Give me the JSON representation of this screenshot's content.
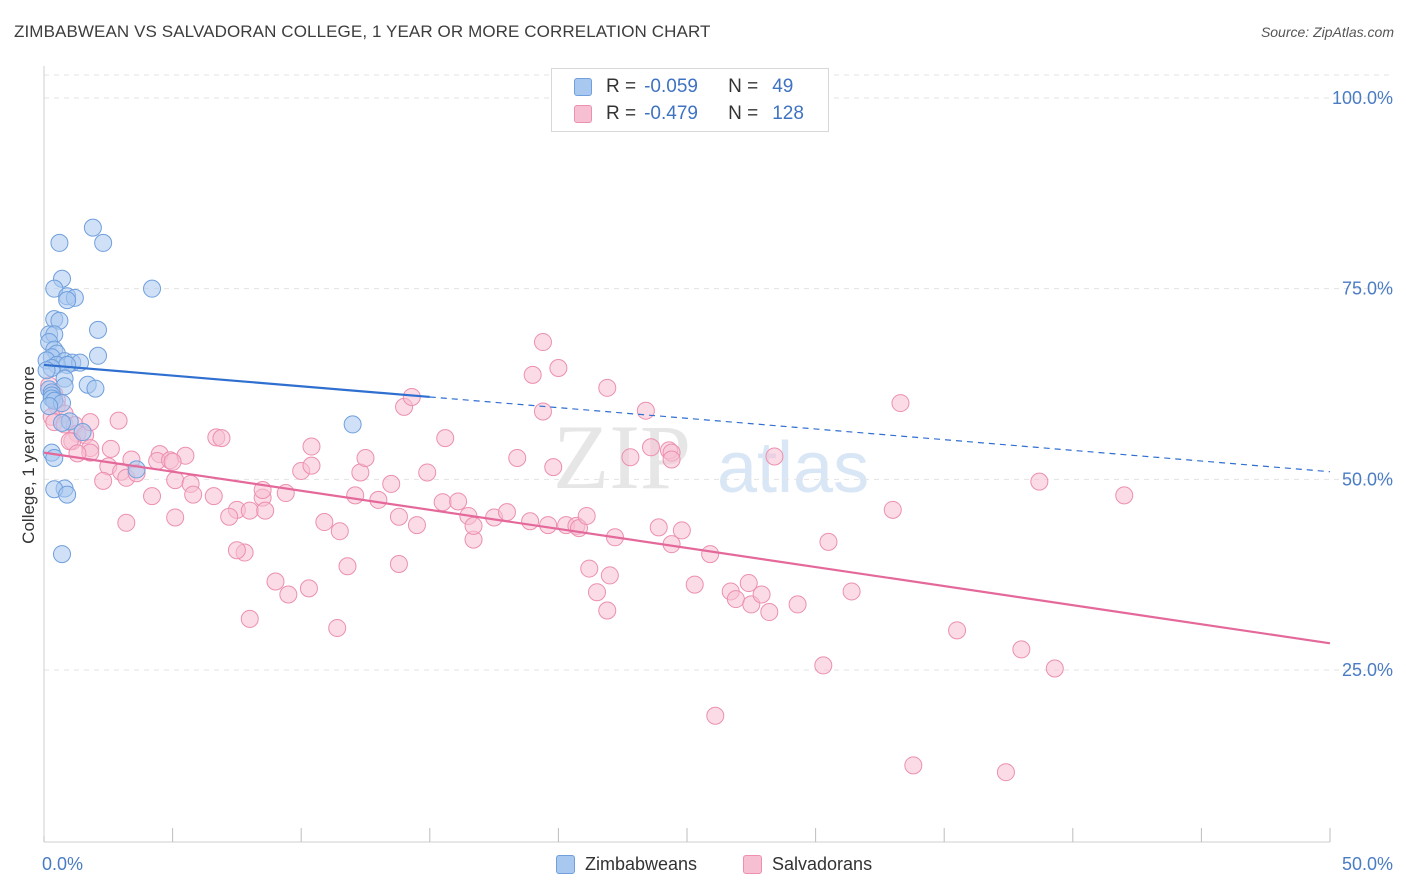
{
  "header": {
    "title": "ZIMBABWEAN VS SALVADORAN COLLEGE, 1 YEAR OR MORE CORRELATION CHART",
    "source": "Source: ZipAtlas.com"
  },
  "legend": {
    "rows": [
      {
        "r_label": "R =",
        "r_value": "-0.059",
        "n_label": "N =",
        "n_value": "49"
      },
      {
        "r_label": "R =",
        "r_value": "-0.479",
        "n_label": "N =",
        "n_value": "128"
      }
    ]
  },
  "colors": {
    "zimbabwean_fill": "#a9c8f0",
    "zimbabwean_stroke": "#6f9fdc",
    "zimbabwean_line": "#2f6fd0",
    "salvadoran_fill": "#f7bfd2",
    "salvadoran_stroke": "#ec8fb0",
    "salvadoran_line": "#e4699a",
    "tick_text": "#4a7cc4"
  },
  "watermark": {
    "part1": "ZIP",
    "part2": "atlas"
  },
  "chart_data": {
    "type": "scatter",
    "title": "ZIMBABWEAN VS SALVADORAN COLLEGE, 1 YEAR OR MORE CORRELATION CHART",
    "xlabel": "",
    "ylabel": "College, 1 year or more",
    "xlim": [
      0,
      50
    ],
    "ylim": [
      0,
      105
    ],
    "x_tick_labels": [
      "0.0%",
      "50.0%"
    ],
    "y_ticks": [
      25,
      50,
      75,
      100
    ],
    "y_tick_labels": [
      "25.0%",
      "50.0%",
      "75.0%",
      "100.0%"
    ],
    "grid": true,
    "series": [
      {
        "name": "Zimbabweans",
        "R": -0.059,
        "N": 49,
        "trend": {
          "x0": 0,
          "y0": 65.0,
          "x1": 50,
          "y1": 51.0,
          "solid_until_x": 15
        },
        "points": [
          [
            1.9,
            83.0
          ],
          [
            0.6,
            81.0
          ],
          [
            2.3,
            81.0
          ],
          [
            0.7,
            76.3
          ],
          [
            0.4,
            75.0
          ],
          [
            4.2,
            75.0
          ],
          [
            0.9,
            74.0
          ],
          [
            1.2,
            73.8
          ],
          [
            0.9,
            73.5
          ],
          [
            0.4,
            71.0
          ],
          [
            0.6,
            70.8
          ],
          [
            2.1,
            69.6
          ],
          [
            0.2,
            69.0
          ],
          [
            0.4,
            69.0
          ],
          [
            0.2,
            68.0
          ],
          [
            0.4,
            67.0
          ],
          [
            0.5,
            66.5
          ],
          [
            2.1,
            66.2
          ],
          [
            0.3,
            66.0
          ],
          [
            0.1,
            65.6
          ],
          [
            0.8,
            65.5
          ],
          [
            1.1,
            65.3
          ],
          [
            1.4,
            65.3
          ],
          [
            0.5,
            65.0
          ],
          [
            0.9,
            65.0
          ],
          [
            0.3,
            64.6
          ],
          [
            0.1,
            64.3
          ],
          [
            0.8,
            63.2
          ],
          [
            1.7,
            62.4
          ],
          [
            0.8,
            62.2
          ],
          [
            2.0,
            61.9
          ],
          [
            0.2,
            61.8
          ],
          [
            0.3,
            61.4
          ],
          [
            0.3,
            61.0
          ],
          [
            0.3,
            60.6
          ],
          [
            0.4,
            60.3
          ],
          [
            0.7,
            60.0
          ],
          [
            0.2,
            59.6
          ],
          [
            1.0,
            57.6
          ],
          [
            0.7,
            57.4
          ],
          [
            1.5,
            56.2
          ],
          [
            12.0,
            57.2
          ],
          [
            3.6,
            51.3
          ],
          [
            0.3,
            53.5
          ],
          [
            0.4,
            52.8
          ],
          [
            0.8,
            48.8
          ],
          [
            0.4,
            48.7
          ],
          [
            0.9,
            48.0
          ],
          [
            0.7,
            40.2
          ]
        ]
      },
      {
        "name": "Salvadorans",
        "R": -0.479,
        "N": 128,
        "trend": {
          "x0": 0,
          "y0": 53.5,
          "x1": 50,
          "y1": 28.5
        },
        "points": [
          [
            0.2,
            62.3
          ],
          [
            0.4,
            61.2
          ],
          [
            0.5,
            60.4
          ],
          [
            0.5,
            59.6
          ],
          [
            0.8,
            58.6
          ],
          [
            0.3,
            58.2
          ],
          [
            0.4,
            57.5
          ],
          [
            0.8,
            57.2
          ],
          [
            1.2,
            57.1
          ],
          [
            1.3,
            56.0
          ],
          [
            1.6,
            55.8
          ],
          [
            1.1,
            55.0
          ],
          [
            2.9,
            57.7
          ],
          [
            1.8,
            57.5
          ],
          [
            1.0,
            55.0
          ],
          [
            1.8,
            54.1
          ],
          [
            2.6,
            54.0
          ],
          [
            1.8,
            53.5
          ],
          [
            1.3,
            53.4
          ],
          [
            4.5,
            53.3
          ],
          [
            3.4,
            52.6
          ],
          [
            4.4,
            52.4
          ],
          [
            4.9,
            52.5
          ],
          [
            5.5,
            53.1
          ],
          [
            6.7,
            55.5
          ],
          [
            6.9,
            55.4
          ],
          [
            2.5,
            51.7
          ],
          [
            3.0,
            51.0
          ],
          [
            3.2,
            50.2
          ],
          [
            3.6,
            50.8
          ],
          [
            2.3,
            49.8
          ],
          [
            5.0,
            52.3
          ],
          [
            5.1,
            49.9
          ],
          [
            5.7,
            49.4
          ],
          [
            4.2,
            47.8
          ],
          [
            5.8,
            48.0
          ],
          [
            6.6,
            47.8
          ],
          [
            8.5,
            47.6
          ],
          [
            7.5,
            46.0
          ],
          [
            8.0,
            45.9
          ],
          [
            7.2,
            45.1
          ],
          [
            8.6,
            45.9
          ],
          [
            5.1,
            45.0
          ],
          [
            3.2,
            44.3
          ],
          [
            8.5,
            48.6
          ],
          [
            9.4,
            48.2
          ],
          [
            10.0,
            51.1
          ],
          [
            10.4,
            54.3
          ],
          [
            10.4,
            51.8
          ],
          [
            10.9,
            44.4
          ],
          [
            11.5,
            43.2
          ],
          [
            12.1,
            47.9
          ],
          [
            12.3,
            50.9
          ],
          [
            12.5,
            52.8
          ],
          [
            13.0,
            47.3
          ],
          [
            13.5,
            49.4
          ],
          [
            13.8,
            45.1
          ],
          [
            14.0,
            59.5
          ],
          [
            14.3,
            60.8
          ],
          [
            14.5,
            44.0
          ],
          [
            14.9,
            50.9
          ],
          [
            15.5,
            47.0
          ],
          [
            15.6,
            55.4
          ],
          [
            16.1,
            47.1
          ],
          [
            16.5,
            45.2
          ],
          [
            16.7,
            42.1
          ],
          [
            16.7,
            43.9
          ],
          [
            17.5,
            45.0
          ],
          [
            18.0,
            45.7
          ],
          [
            18.4,
            52.8
          ],
          [
            18.9,
            44.5
          ],
          [
            19.0,
            63.7
          ],
          [
            19.4,
            68.0
          ],
          [
            19.6,
            44.0
          ],
          [
            19.4,
            58.9
          ],
          [
            19.8,
            51.6
          ],
          [
            20.0,
            64.6
          ],
          [
            20.3,
            44.0
          ],
          [
            20.7,
            43.9
          ],
          [
            20.8,
            43.6
          ],
          [
            21.1,
            45.2
          ],
          [
            21.2,
            38.3
          ],
          [
            21.5,
            35.2
          ],
          [
            21.9,
            62.0
          ],
          [
            22.0,
            37.4
          ],
          [
            22.2,
            42.4
          ],
          [
            22.8,
            52.9
          ],
          [
            23.4,
            59.0
          ],
          [
            23.6,
            54.2
          ],
          [
            24.3,
            53.8
          ],
          [
            24.4,
            53.5
          ],
          [
            24.4,
            52.6
          ],
          [
            23.9,
            43.7
          ],
          [
            24.4,
            41.5
          ],
          [
            24.8,
            43.3
          ],
          [
            25.3,
            36.2
          ],
          [
            25.9,
            40.2
          ],
          [
            26.7,
            35.3
          ],
          [
            26.9,
            34.3
          ],
          [
            27.4,
            36.4
          ],
          [
            27.5,
            33.6
          ],
          [
            27.9,
            34.9
          ],
          [
            28.2,
            32.6
          ],
          [
            28.4,
            53.0
          ],
          [
            29.3,
            33.6
          ],
          [
            30.3,
            25.6
          ],
          [
            30.5,
            41.8
          ],
          [
            31.4,
            35.3
          ],
          [
            26.1,
            19.0
          ],
          [
            33.0,
            46.0
          ],
          [
            33.3,
            60.0
          ],
          [
            33.8,
            12.5
          ],
          [
            35.5,
            30.2
          ],
          [
            37.4,
            11.6
          ],
          [
            38.0,
            27.7
          ],
          [
            38.7,
            49.7
          ],
          [
            39.3,
            25.2
          ],
          [
            42.0,
            47.9
          ],
          [
            21.9,
            32.8
          ],
          [
            13.8,
            38.9
          ],
          [
            11.8,
            38.6
          ],
          [
            11.4,
            30.5
          ],
          [
            10.3,
            35.7
          ],
          [
            9.5,
            34.9
          ],
          [
            9.0,
            36.6
          ],
          [
            8.0,
            31.7
          ],
          [
            7.8,
            40.4
          ],
          [
            7.5,
            40.7
          ]
        ]
      }
    ]
  },
  "bottom_legend": {
    "items": [
      "Zimbabweans",
      "Salvadorans"
    ]
  }
}
